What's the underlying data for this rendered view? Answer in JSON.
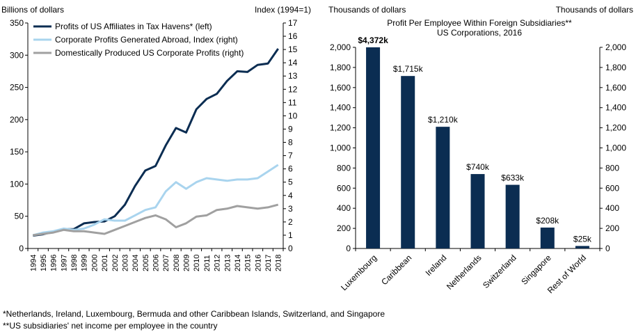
{
  "chart_data": [
    {
      "type": "line",
      "left_axis_title": "Billions of dollars",
      "right_axis_title": "Index (1994=1)",
      "x": [
        "1994",
        "1995",
        "1996",
        "1997",
        "1998",
        "1999",
        "2000",
        "2001",
        "2002",
        "2003",
        "2004",
        "2005",
        "2006",
        "2007",
        "2008",
        "2009",
        "2010",
        "2011",
        "2012",
        "2013",
        "2014",
        "2015",
        "2016",
        "2017",
        "2018"
      ],
      "left_ylim": [
        0,
        350
      ],
      "left_ticks": [
        0,
        50,
        100,
        150,
        200,
        250,
        300,
        350
      ],
      "right_ylim": [
        0,
        17
      ],
      "right_ticks": [
        0,
        1,
        2,
        3,
        4,
        5,
        6,
        7,
        8,
        9,
        10,
        11,
        12,
        13,
        14,
        15,
        16,
        17
      ],
      "series": [
        {
          "name": "Profits of US Affiliates in Tax Havens* (left)",
          "axis": "left",
          "color": "#0b2d52",
          "values": [
            20,
            22,
            26,
            30,
            30,
            39,
            41,
            42,
            50,
            68,
            97,
            121,
            128,
            160,
            187,
            180,
            216,
            232,
            240,
            260,
            275,
            274,
            285,
            287,
            310
          ]
        },
        {
          "name": "Corporate Profits Generated Abroad, Index (right)",
          "axis": "right",
          "color": "#a9d4ee",
          "values": [
            1.0,
            1.2,
            1.3,
            1.5,
            1.4,
            1.5,
            1.8,
            2.2,
            2.1,
            2.1,
            2.5,
            2.9,
            3.1,
            4.3,
            5.0,
            4.5,
            5.0,
            5.3,
            5.2,
            5.1,
            5.2,
            5.2,
            5.3,
            5.8,
            6.3
          ]
        },
        {
          "name": "Domestically Produced US Corporate Profits (right)",
          "axis": "right",
          "color": "#a0a0a0",
          "values": [
            1.0,
            1.1,
            1.2,
            1.4,
            1.3,
            1.3,
            1.2,
            1.1,
            1.4,
            1.7,
            2.0,
            2.3,
            2.5,
            2.2,
            1.6,
            1.9,
            2.4,
            2.5,
            2.9,
            3.0,
            3.2,
            3.1,
            3.0,
            3.1,
            3.3
          ]
        }
      ]
    },
    {
      "type": "bar",
      "title_line1": "Profit Per Employee Within  Foreign Subsidiaries**",
      "title_line2": "US Corporations,  2016",
      "left_axis_title": "Thousands  of dollars",
      "right_axis_title": "Thousands  of dollars",
      "ylim": [
        0,
        2000
      ],
      "ticks": [
        0,
        200,
        400,
        600,
        800,
        1000,
        1200,
        1400,
        1600,
        1800,
        2000
      ],
      "tick_labels": [
        "0",
        "200",
        "400",
        "600",
        "800",
        "1,000",
        "1,200",
        "1,400",
        "1,600",
        "1,800",
        "2,000"
      ],
      "bar_color": "#0b2d52",
      "highlight_label_color": "#e02020",
      "categories": [
        "Luxembourg",
        "Caribbean",
        "Ireland",
        "Netherlands",
        "Switzerland",
        "Singapore",
        "Rest of World"
      ],
      "values": [
        4372,
        1715,
        1210,
        740,
        633,
        208,
        25
      ],
      "data_labels": [
        "$4,372k",
        "$1,715k",
        "$1,210k",
        "$740k",
        "$633k",
        "$208k",
        "$25k"
      ]
    }
  ],
  "footnotes": {
    "line1": "*Netherlands, Ireland, Luxembourg, Bermuda and other Caribbean Islands, Switzerland, and Singapore",
    "line2": "**US subsidiaries' net income per employee in the country"
  }
}
